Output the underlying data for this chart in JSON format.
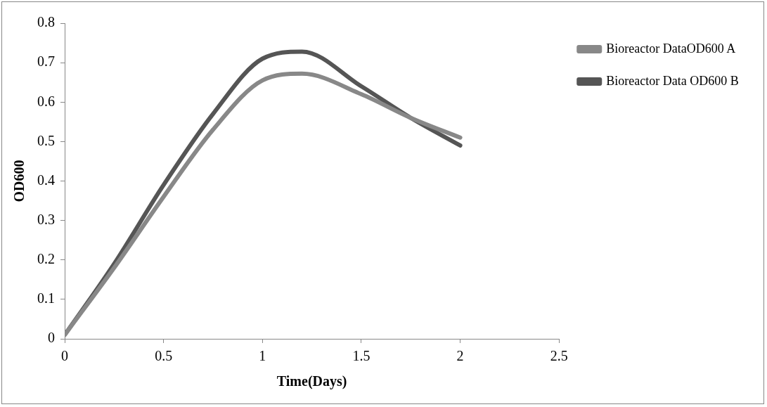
{
  "chart_data": {
    "type": "line",
    "xlabel": "Time(Days)",
    "ylabel": "OD600",
    "x": [
      0,
      0.25,
      0.5,
      0.75,
      1,
      1.2,
      1.5,
      1.75,
      2
    ],
    "series": [
      {
        "name": "Bioreactor DataOD600 A",
        "color": "#888888",
        "values": [
          0.01,
          0.18,
          0.36,
          0.53,
          0.655,
          0.672,
          0.62,
          0.56,
          0.51
        ]
      },
      {
        "name": "Bioreactor Data OD600 B",
        "color": "#555555",
        "values": [
          0.01,
          0.19,
          0.39,
          0.57,
          0.71,
          0.728,
          0.64,
          0.56,
          0.49
        ]
      }
    ],
    "xlim": [
      0,
      2.5
    ],
    "xticks": [
      0,
      0.5,
      1,
      1.5,
      2,
      2.5
    ],
    "ylim": [
      0,
      0.8
    ],
    "yticks": [
      0,
      0.1,
      0.2,
      0.3,
      0.4,
      0.5,
      0.6,
      0.7,
      0.8
    ],
    "grid": false,
    "legend": "right",
    "marker": "none",
    "line_style": "solid"
  }
}
